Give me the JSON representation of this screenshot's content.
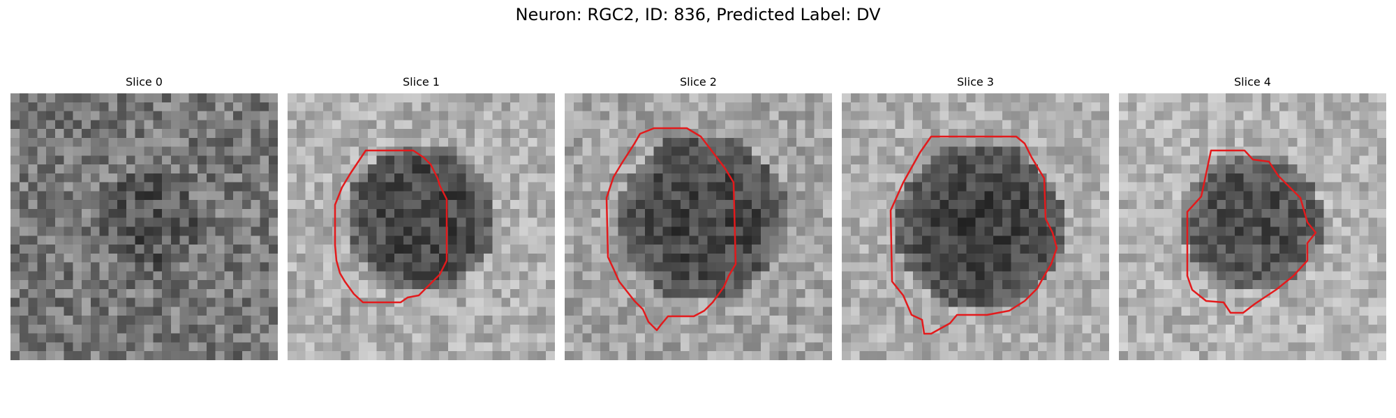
{
  "figure": {
    "title": "Neuron: RGC2, ID: 836, Predicted Label: DV",
    "contour_color": "#e31a1c"
  },
  "slices": [
    {
      "title": "Slice 0",
      "has_contour": false
    },
    {
      "title": "Slice 1",
      "has_contour": true
    },
    {
      "title": "Slice 2",
      "has_contour": true
    },
    {
      "title": "Slice 3",
      "has_contour": true
    },
    {
      "title": "Slice 4",
      "has_contour": true
    }
  ]
}
